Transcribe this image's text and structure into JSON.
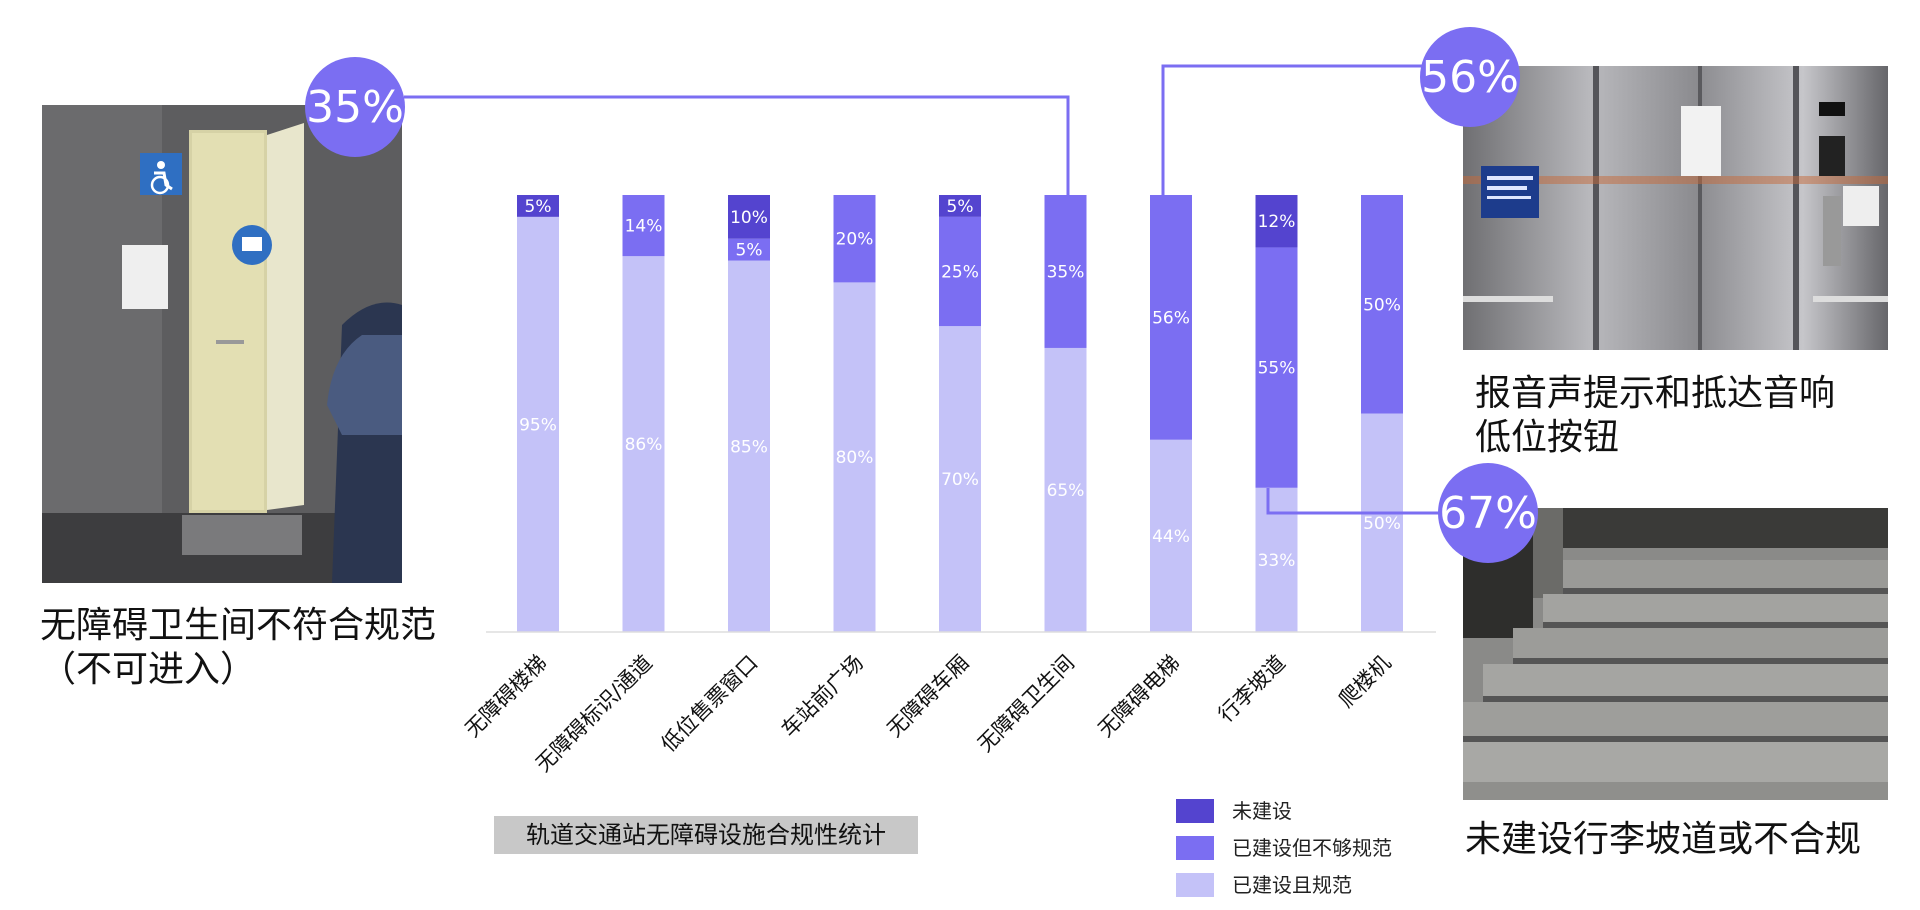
{
  "chart_data": {
    "type": "bar",
    "stacked": true,
    "title": "轨道交通站无障碍设施合规性统计",
    "categories": [
      "无障碍楼梯",
      "无障碍标识/通道",
      "低位售票窗口",
      "车站前广场",
      "无障碍车厢",
      "无障碍卫生间",
      "无障碍电梯",
      "行李坡道",
      "爬楼机"
    ],
    "series": [
      {
        "name": "已建设且规范",
        "color": "#c4c2f8",
        "values": [
          95,
          86,
          85,
          80,
          70,
          65,
          44,
          33,
          50
        ],
        "labels": [
          "95%",
          "86%",
          "85%",
          "80%",
          "70%",
          "65%",
          "44%",
          "33%",
          "50%"
        ]
      },
      {
        "name": "已建设但不够规范",
        "color": "#7b6ef2",
        "values": [
          0,
          14,
          5,
          20,
          25,
          35,
          56,
          55,
          50
        ],
        "labels": [
          "",
          "14%",
          "5%",
          "20%",
          "25%",
          "35%",
          "56%",
          "55%",
          "50%"
        ]
      },
      {
        "name": "未建设",
        "color": "#5444cf",
        "values": [
          5,
          0,
          10,
          0,
          5,
          0,
          0,
          12,
          0
        ],
        "labels": [
          "5%",
          "",
          "10%",
          "",
          "5%",
          "",
          "",
          "12%",
          ""
        ]
      }
    ],
    "ylim": [
      0,
      100
    ],
    "grid": false,
    "legend_position": "bottom-right"
  },
  "colors": {
    "badge": "#7b6ef2",
    "connector": "#7b6ef2",
    "accent": "#5444cf"
  },
  "callouts": [
    {
      "id": "restroom",
      "badge": "35%",
      "caption": "无障碍卫生间不符合规范\n（不可进入）"
    },
    {
      "id": "elevator",
      "badge": "56%",
      "caption": "报音声提示和抵达音响\n低位按钮"
    },
    {
      "id": "ramp",
      "badge": "67%",
      "caption": "未建设行李坡道或不合规"
    }
  ],
  "photos": {
    "restroom": "accessible-restroom-door-photo",
    "elevator": "elevator-interior-photo",
    "ramp": "stone-steps-photo"
  }
}
